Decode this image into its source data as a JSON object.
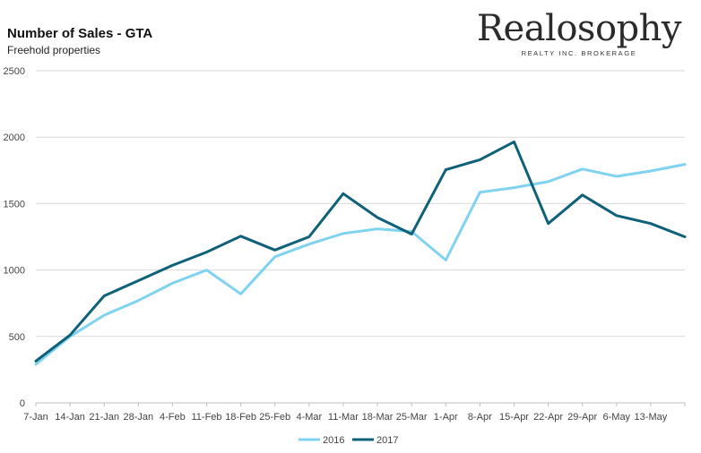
{
  "header": {
    "title": "Number of Sales - GTA",
    "subtitle": "Freehold properties"
  },
  "brand": {
    "name": "Realosophy",
    "tagline": "REALTY INC. BROKERAGE"
  },
  "colors": {
    "series_2016": "#7fd3f0",
    "series_2017": "#0e6178",
    "grid": "#d9d9d9",
    "axis": "#bfbfbf"
  },
  "chart_data": {
    "type": "line",
    "categories": [
      "7-Jan",
      "14-Jan",
      "21-Jan",
      "28-Jan",
      "4-Feb",
      "11-Feb",
      "18-Feb",
      "25-Feb",
      "4-Mar",
      "11-Mar",
      "18-Mar",
      "25-Mar",
      "1-Apr",
      "8-Apr",
      "15-Apr",
      "22-Apr",
      "29-Apr",
      "6-May",
      "13-May",
      ""
    ],
    "series": [
      {
        "name": "2016",
        "values": [
          290,
          500,
          660,
          770,
          900,
          1000,
          820,
          1100,
          1195,
          1275,
          1310,
          1290,
          1075,
          1585,
          1620,
          1665,
          1760,
          1705,
          1745,
          1795
        ]
      },
      {
        "name": "2017",
        "values": [
          315,
          510,
          805,
          920,
          1035,
          1135,
          1255,
          1150,
          1250,
          1575,
          1395,
          1270,
          1755,
          1830,
          1965,
          1350,
          1565,
          1410,
          1350,
          1250
        ]
      }
    ],
    "yticks": [
      0,
      500,
      1000,
      1500,
      2000,
      2500
    ],
    "ylim": [
      0,
      2500
    ],
    "grid": true,
    "legend": "bottom-center"
  }
}
